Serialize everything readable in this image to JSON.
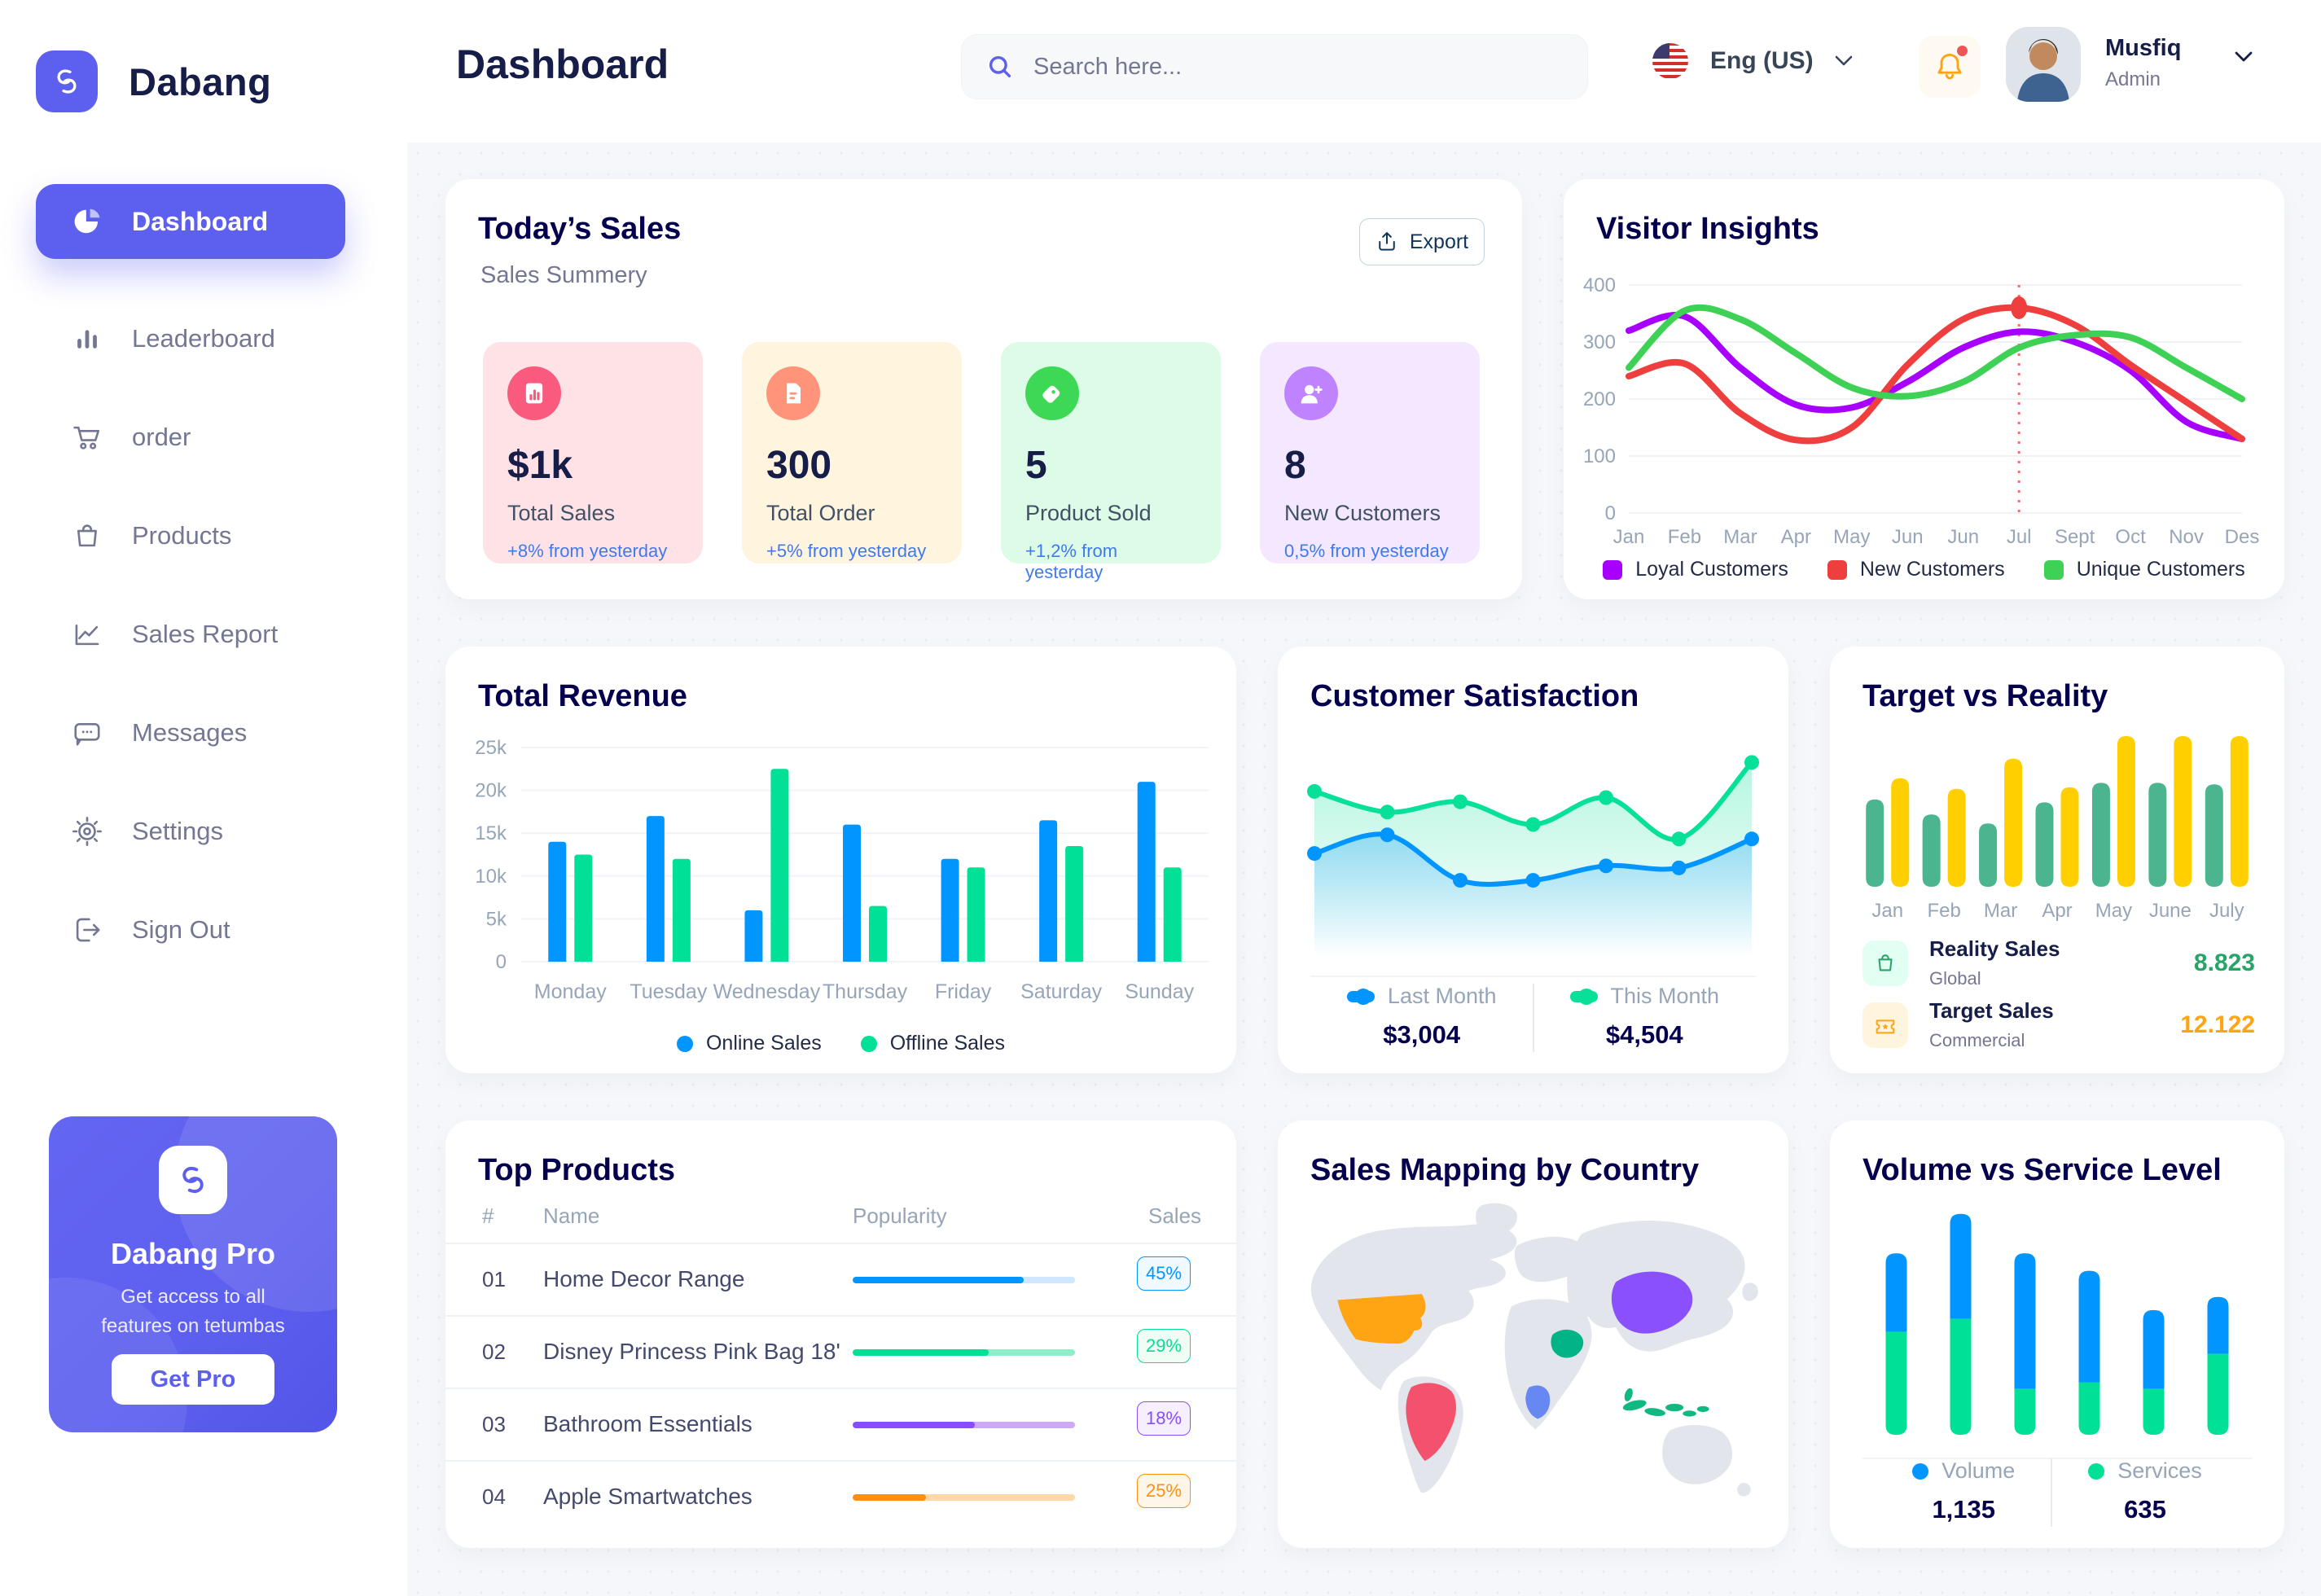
{
  "app": {
    "brand": "Dabang"
  },
  "sidebar": {
    "items": [
      {
        "label": "Dashboard",
        "active": true
      },
      {
        "label": "Leaderboard"
      },
      {
        "label": "order"
      },
      {
        "label": "Products"
      },
      {
        "label": "Sales Report"
      },
      {
        "label": "Messages"
      },
      {
        "label": "Settings"
      },
      {
        "label": "Sign Out"
      }
    ],
    "pro": {
      "title": "Dabang Pro",
      "desc_line1": "Get access to all",
      "desc_line2": "features on tetumbas",
      "button": "Get Pro"
    }
  },
  "header": {
    "title": "Dashboard",
    "search_placeholder": "Search here...",
    "language": "Eng (US)",
    "user_name": "Musfiq",
    "user_role": "Admin"
  },
  "todays_sales": {
    "title": "Today’s Sales",
    "subtitle": "Sales Summery",
    "export_label": "Export",
    "stats": [
      {
        "value": "$1k",
        "label": "Total Sales",
        "change": "+8% from yesterday",
        "bg": "#FFE2E5",
        "icon_bg": "#FA5A7D"
      },
      {
        "value": "300",
        "label": "Total Order",
        "change": "+5% from yesterday",
        "bg": "#FFF4DE",
        "icon_bg": "#FF947A"
      },
      {
        "value": "5",
        "label": "Product Sold",
        "change": "+1,2% from yesterday",
        "bg": "#DCFCE7",
        "icon_bg": "#3CD856"
      },
      {
        "value": "8",
        "label": "New Customers",
        "change": "0,5% from yesterday",
        "bg": "#F3E8FF",
        "icon_bg": "#BF83FF"
      }
    ]
  },
  "chart_data": [
    {
      "id": "visitor_insights",
      "type": "line",
      "title": "Visitor Insights",
      "x": [
        "Jan",
        "Feb",
        "Mar",
        "Apr",
        "May",
        "Jun",
        "Jun",
        "Jul",
        "Sept",
        "Oct",
        "Nov",
        "Des"
      ],
      "ylim": [
        0,
        400
      ],
      "yticks": [
        0,
        100,
        200,
        300,
        400
      ],
      "grid": true,
      "legend_position": "bottom",
      "series": [
        {
          "name": "Loyal Customers",
          "color": "#A700FF",
          "values": [
            320,
            345,
            255,
            190,
            185,
            230,
            290,
            318,
            300,
            250,
            160,
            130
          ]
        },
        {
          "name": "New Customers",
          "color": "#EF3E3E",
          "values": [
            240,
            262,
            175,
            128,
            150,
            260,
            340,
            360,
            330,
            260,
            195,
            130
          ]
        },
        {
          "name": "Unique Customers",
          "color": "#3ED156",
          "values": [
            255,
            355,
            340,
            280,
            220,
            205,
            230,
            290,
            312,
            308,
            255,
            200
          ]
        }
      ],
      "marker": {
        "index": 7,
        "series": 1,
        "color": "#EF3E3E"
      }
    },
    {
      "id": "total_revenue",
      "type": "bar",
      "title": "Total Revenue",
      "categories": [
        "Monday",
        "Tuesday",
        "Wednesday",
        "Thursday",
        "Friday",
        "Saturday",
        "Sunday"
      ],
      "ylim": [
        0,
        25
      ],
      "yticks": [
        0,
        5,
        10,
        15,
        20,
        25
      ],
      "ytick_labels": [
        "0",
        "5k",
        "10k",
        "15k",
        "20k",
        "25k"
      ],
      "grid": true,
      "legend_position": "bottom",
      "series": [
        {
          "name": "Online Sales",
          "color": "#0095FF",
          "values": [
            14,
            17,
            6,
            16,
            12,
            16.5,
            21
          ]
        },
        {
          "name": "Offline Sales",
          "color": "#00E096",
          "values": [
            12.5,
            12,
            22.5,
            6.5,
            11,
            13.5,
            11
          ]
        }
      ]
    },
    {
      "id": "customer_satisfaction",
      "type": "area",
      "title": "Customer Satisfaction",
      "ylim": [
        0,
        100
      ],
      "grid": false,
      "series": [
        {
          "name": "Last Month",
          "color": "#0095FF",
          "total": "$3,004",
          "values": [
            48,
            57,
            35,
            35,
            42,
            41,
            55
          ]
        },
        {
          "name": "This Month",
          "color": "#07E098",
          "total": "$4,504",
          "values": [
            78,
            68,
            73,
            62,
            75,
            55,
            92
          ]
        }
      ]
    },
    {
      "id": "target_vs_reality",
      "type": "bar_rounded",
      "title": "Target vs Reality",
      "categories": [
        "Jan",
        "Feb",
        "Mar",
        "Apr",
        "May",
        "June",
        "July"
      ],
      "ylim": [
        0,
        10
      ],
      "grid": false,
      "series": [
        {
          "name": "Reality Sales",
          "scope": "Global",
          "total": "8.823",
          "color": "#4AB58E",
          "value_color": "#27A468",
          "legend_bg": "#E2FFF3",
          "values": [
            5.8,
            4.8,
            4.2,
            5.6,
            6.9,
            6.9,
            6.8
          ]
        },
        {
          "name": "Target Sales",
          "scope": "Commercial",
          "total": "12.122",
          "color": "#FFCF00",
          "value_color": "#FFA412",
          "legend_bg": "#FFF4DE",
          "values": [
            7.2,
            6.5,
            8.5,
            6.6,
            10,
            10,
            10
          ]
        }
      ]
    },
    {
      "id": "volume_vs_service",
      "type": "stacked_bar",
      "title": "Volume vs Service Level",
      "ylim": [
        0,
        10.5
      ],
      "grid": false,
      "series": [
        {
          "name": "Volume",
          "color": "#0095FF",
          "total": "1,135",
          "values": [
            3.6,
            4.8,
            6.2,
            5.1,
            3.6,
            2.6
          ]
        },
        {
          "name": "Services",
          "color": "#00E096",
          "total": "635",
          "values": [
            4.7,
            5.3,
            2.1,
            2.4,
            2.1,
            3.7
          ]
        }
      ]
    }
  ],
  "cards": {
    "visitor_title": "Visitor Insights",
    "revenue_title": "Total Revenue",
    "satisfaction_title": "Customer Satisfaction",
    "target_title": "Target vs Reality",
    "top_products_title": "Top Products",
    "map_title": "Sales Mapping by Country",
    "volume_title": "Volume vs Service Level"
  },
  "top_products": {
    "headers": [
      "#",
      "Name",
      "Popularity",
      "Sales"
    ],
    "rows": [
      {
        "num": "01",
        "name": "Home Decor Range",
        "popularity": 77,
        "sales": "45%",
        "fill": "#0095FF",
        "track": "#CFE7FF",
        "badge_bg": "#F0F9FF"
      },
      {
        "num": "02",
        "name": "Disney Princess Pink Bag 18'",
        "popularity": 61,
        "sales": "29%",
        "fill": "#00E096",
        "track": "#8DEFC8",
        "badge_bg": "#F0FDF4"
      },
      {
        "num": "03",
        "name": "Bathroom Essentials",
        "popularity": 55,
        "sales": "18%",
        "fill": "#884DFF",
        "track": "#CBA9F5",
        "badge_bg": "#F6EFFF"
      },
      {
        "num": "04",
        "name": "Apple Smartwatches",
        "popularity": 33,
        "sales": "25%",
        "fill": "#FF8F0D",
        "track": "#FFD8A6",
        "badge_bg": "#FFF6E9"
      }
    ]
  },
  "map": {
    "land_color": "#E2E5EB",
    "countries": [
      {
        "name": "United States",
        "color": "#FFA412"
      },
      {
        "name": "Brazil",
        "color": "#F4516C"
      },
      {
        "name": "Saudi Arabia",
        "color": "#00B487"
      },
      {
        "name": "DR Congo",
        "color": "#6787F3"
      },
      {
        "name": "China",
        "color": "#8950FC"
      },
      {
        "name": "Indonesia",
        "color": "#10B981"
      }
    ]
  }
}
